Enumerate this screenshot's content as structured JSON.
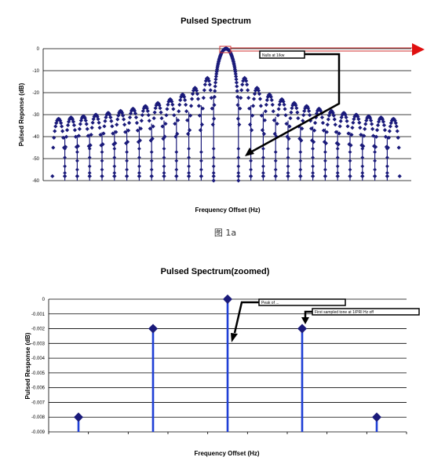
{
  "caption": "图 1a",
  "colors": {
    "marker": "#1a1a7a",
    "stem_top": "#1a1a7a",
    "stem_bottom": "#1f3fd6",
    "arrow_red": "#e01010",
    "box_red": "#d03030"
  },
  "chart_data": [
    {
      "type": "scatter",
      "style": "stem plot with diamond markers",
      "title": "Pulsed Spectrum",
      "xlabel": "Frequency Offset (Hz)",
      "ylabel": "Pulsed Reponse (dB)",
      "ylim": [
        -60,
        0
      ],
      "yticks": [
        0,
        -10,
        -20,
        -30,
        -40,
        -50,
        -60
      ],
      "ytick_labels": [
        "0",
        "-10",
        "-20",
        "-30",
        "-40",
        "-50",
        "-60"
      ],
      "grid": "horizontal",
      "main_lobe": {
        "x": 0,
        "y": 0
      },
      "first_nulls": {
        "x": [
          -1,
          1
        ],
        "y": -60
      },
      "sidelobe_peaks": [
        -13.3,
        -17.8,
        -20.8,
        -23.0,
        -24.7,
        -26.1,
        -27.3,
        -28.3,
        -29.2,
        -30.0,
        -30.7,
        -31.3,
        -31.9
      ],
      "annotation": "Nulls at 1/kw"
    },
    {
      "type": "scatter",
      "style": "stem plot with diamond markers",
      "title": "Pulsed Spectrum(zoomed)",
      "xlabel": "Frequency Offset (Hz)",
      "ylabel": "Pulsed Response (dB)",
      "ylim": [
        -0.009,
        0
      ],
      "yticks": [
        0,
        -0.001,
        -0.002,
        -0.003,
        -0.004,
        -0.005,
        -0.006,
        -0.007,
        -0.008,
        -0.009
      ],
      "ytick_labels": [
        "0",
        "-0.001",
        "-0.002",
        "-0.003",
        "-0.004",
        "-0.005",
        "-0.006",
        "-0.007",
        "-0.008",
        "-0.009"
      ],
      "grid": "horizontal",
      "points": [
        {
          "x": -2,
          "y": -0.008
        },
        {
          "x": -1,
          "y": -0.002
        },
        {
          "x": 0,
          "y": 0
        },
        {
          "x": 1,
          "y": -0.002
        },
        {
          "x": 2,
          "y": -0.008
        }
      ],
      "annotations": [
        "Peak of ...",
        "First sampled tone at 1/PRI Hz off"
      ]
    }
  ]
}
